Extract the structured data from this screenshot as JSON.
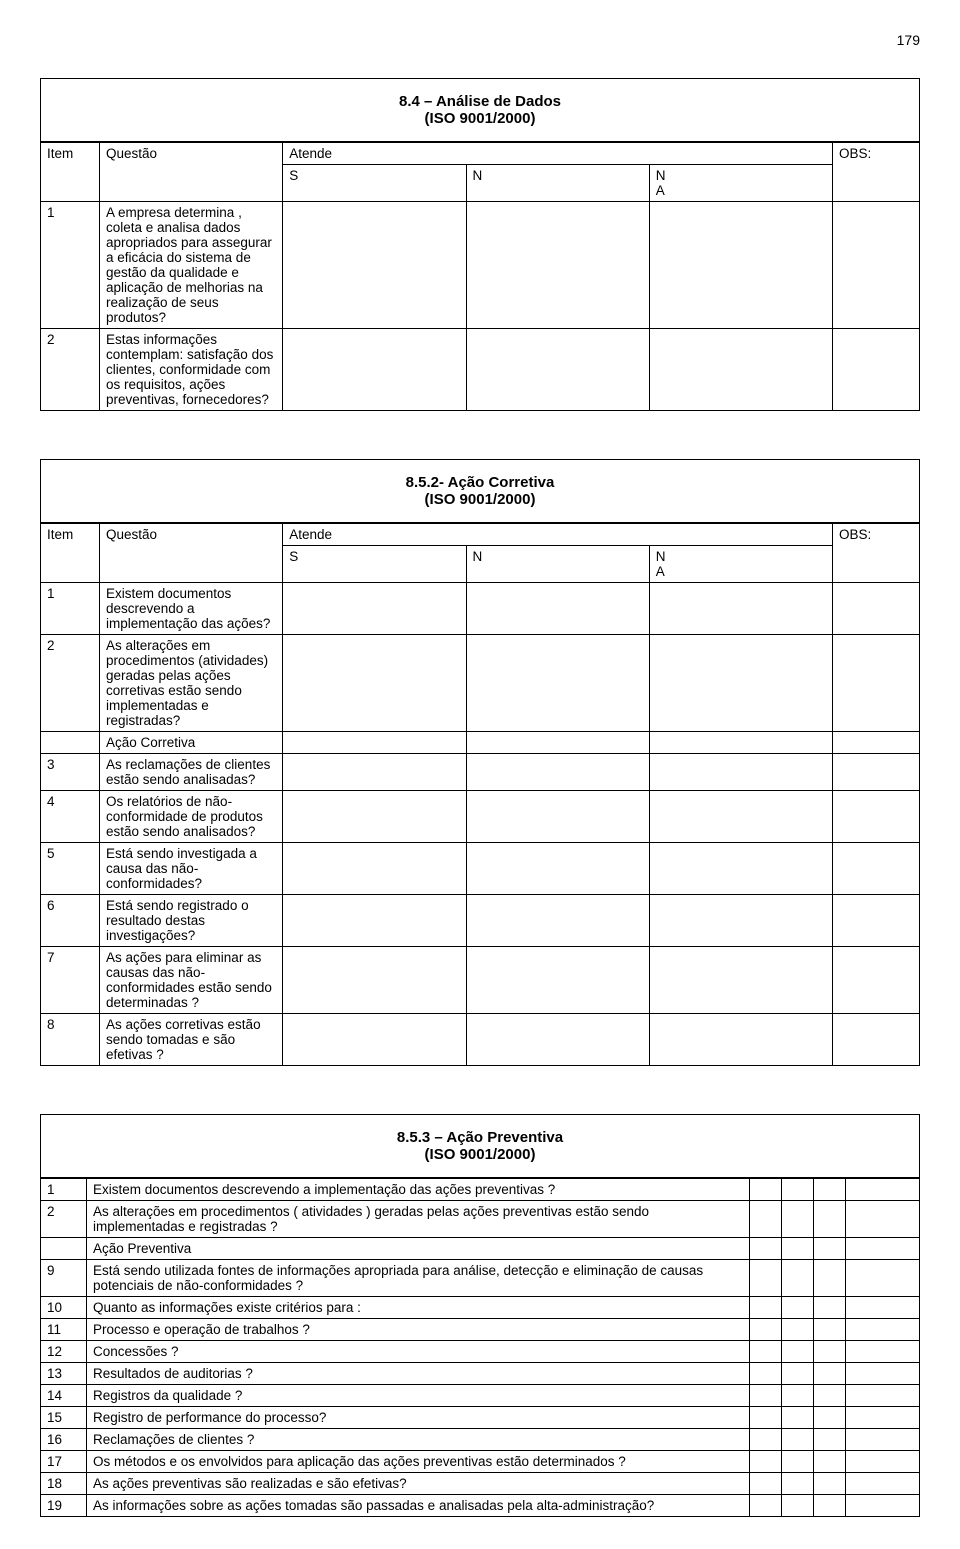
{
  "page_number": "179",
  "headers": {
    "item": "Item",
    "questao": "Questão",
    "atende": "Atende",
    "s": "S",
    "n": "N",
    "na1": "N",
    "na2": "A",
    "obs": "OBS:"
  },
  "sections": [
    {
      "title_line1": "8.4 – Análise de Dados",
      "title_line2": "(ISO 9001/2000)",
      "has_header": true,
      "rows": [
        {
          "n": "1",
          "q": "A empresa determina , coleta e analisa dados apropriados para assegurar a eficácia do sistema de gestão da qualidade e aplicação de melhorias na realização de seus produtos?"
        },
        {
          "n": "2",
          "q": "Estas informações contemplam: satisfação dos clientes, conformidade com os requisitos, ações preventivas, fornecedores?"
        }
      ]
    },
    {
      "title_line1": "8.5.2- Ação Corretiva",
      "title_line2": "(ISO 9001/2000)",
      "has_header": true,
      "rows": [
        {
          "n": "1",
          "q": "Existem documentos descrevendo a implementação das ações?"
        },
        {
          "n": "2",
          "q": "As alterações em procedimentos  (atividades) geradas pelas ações corretivas estão sendo implementadas e registradas?"
        },
        {
          "n": "",
          "q": "Ação Corretiva"
        },
        {
          "n": "3",
          "q": "As reclamações de clientes estão sendo analisadas?"
        },
        {
          "n": "4",
          "q": "Os relatórios de não-conformidade de produtos estão sendo analisados?"
        },
        {
          "n": "5",
          "q": "Está sendo investigada a causa das não-conformidades?"
        },
        {
          "n": "6",
          "q": "Está sendo registrado o resultado destas investigações?"
        },
        {
          "n": "7",
          "q": "As ações para eliminar as causas das não-conformidades estão sendo determinadas ?"
        },
        {
          "n": "8",
          "q": "As ações corretivas estão sendo tomadas e são efetivas ?"
        }
      ]
    },
    {
      "title_line1": "8.5.3 – Ação Preventiva",
      "title_line2": "(ISO 9001/2000)",
      "has_header": false,
      "rows": [
        {
          "n": "1",
          "q": "Existem documentos descrevendo a implementação das ações preventivas ?"
        },
        {
          "n": "2",
          "q": "As alterações em procedimentos  ( atividades ) geradas pelas ações preventivas estão sendo implementadas e registradas ?"
        },
        {
          "n": "",
          "q": "Ação Preventiva"
        },
        {
          "n": "9",
          "q": "Está sendo utilizada fontes de informações apropriada para análise, detecção e eliminação de causas potenciais de não-conformidades ?"
        },
        {
          "n": "10",
          "q": "Quanto as informações existe critérios para :"
        },
        {
          "n": "11",
          "q": "Processo e operação de trabalhos ?"
        },
        {
          "n": "12",
          "q": "Concessões ?"
        },
        {
          "n": "13",
          "q": "Resultados de auditorias ?"
        },
        {
          "n": "14",
          "q": "Registros da qualidade ?"
        },
        {
          "n": "15",
          "q": "Registro de performance do processo?"
        },
        {
          "n": "16",
          "q": "Reclamações de clientes ?"
        },
        {
          "n": "17",
          "q": "Os métodos e os envolvidos para aplicação das ações preventivas estão determinados ?"
        },
        {
          "n": "18",
          "q": "As ações preventivas são realizadas e são efetivas?"
        },
        {
          "n": "19",
          "q": "As informações sobre as ações tomadas são passadas e analisadas pela alta-administração?"
        }
      ]
    }
  ]
}
